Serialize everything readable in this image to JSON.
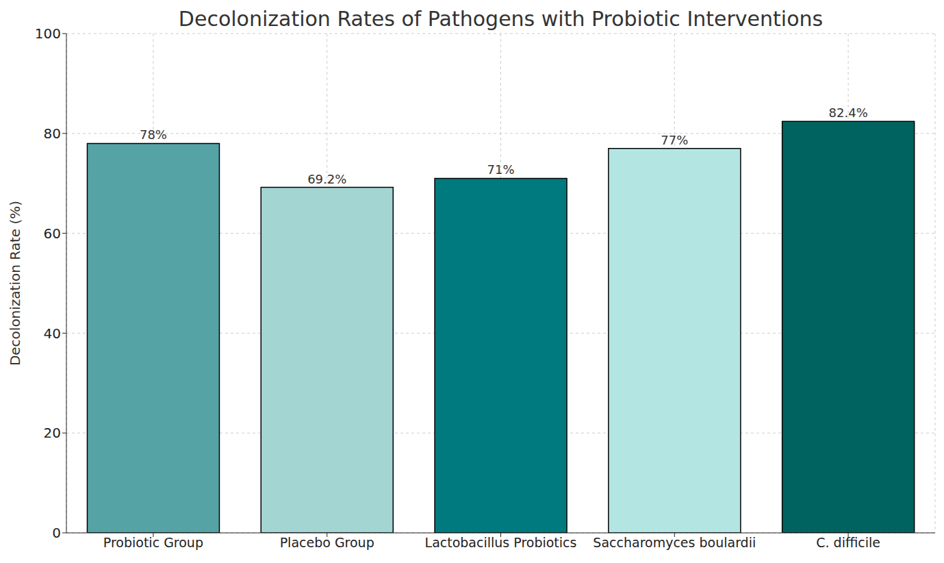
{
  "chart_data": {
    "type": "bar",
    "title": "Decolonization Rates of Pathogens with Probiotic Interventions",
    "y_label": "Decolonization Rate (%)",
    "categories": [
      "Probiotic Group",
      "Placebo Group",
      "Lactobacillus Probiotics",
      "Saccharomyces boulardii",
      "C. difficile"
    ],
    "values": [
      78,
      69.2,
      71,
      77,
      82.4
    ],
    "value_labels": [
      "78%",
      "69.2%",
      "71%",
      "77%",
      "82.4%"
    ],
    "colors": [
      "#56a3a6",
      "#a3d5d3",
      "#007a7f",
      "#b3e6e2",
      "#006360"
    ],
    "ylim": [
      0,
      100
    ],
    "yticks": [
      0,
      20,
      40,
      60,
      80,
      100
    ],
    "grid": true,
    "data_labels": true
  }
}
